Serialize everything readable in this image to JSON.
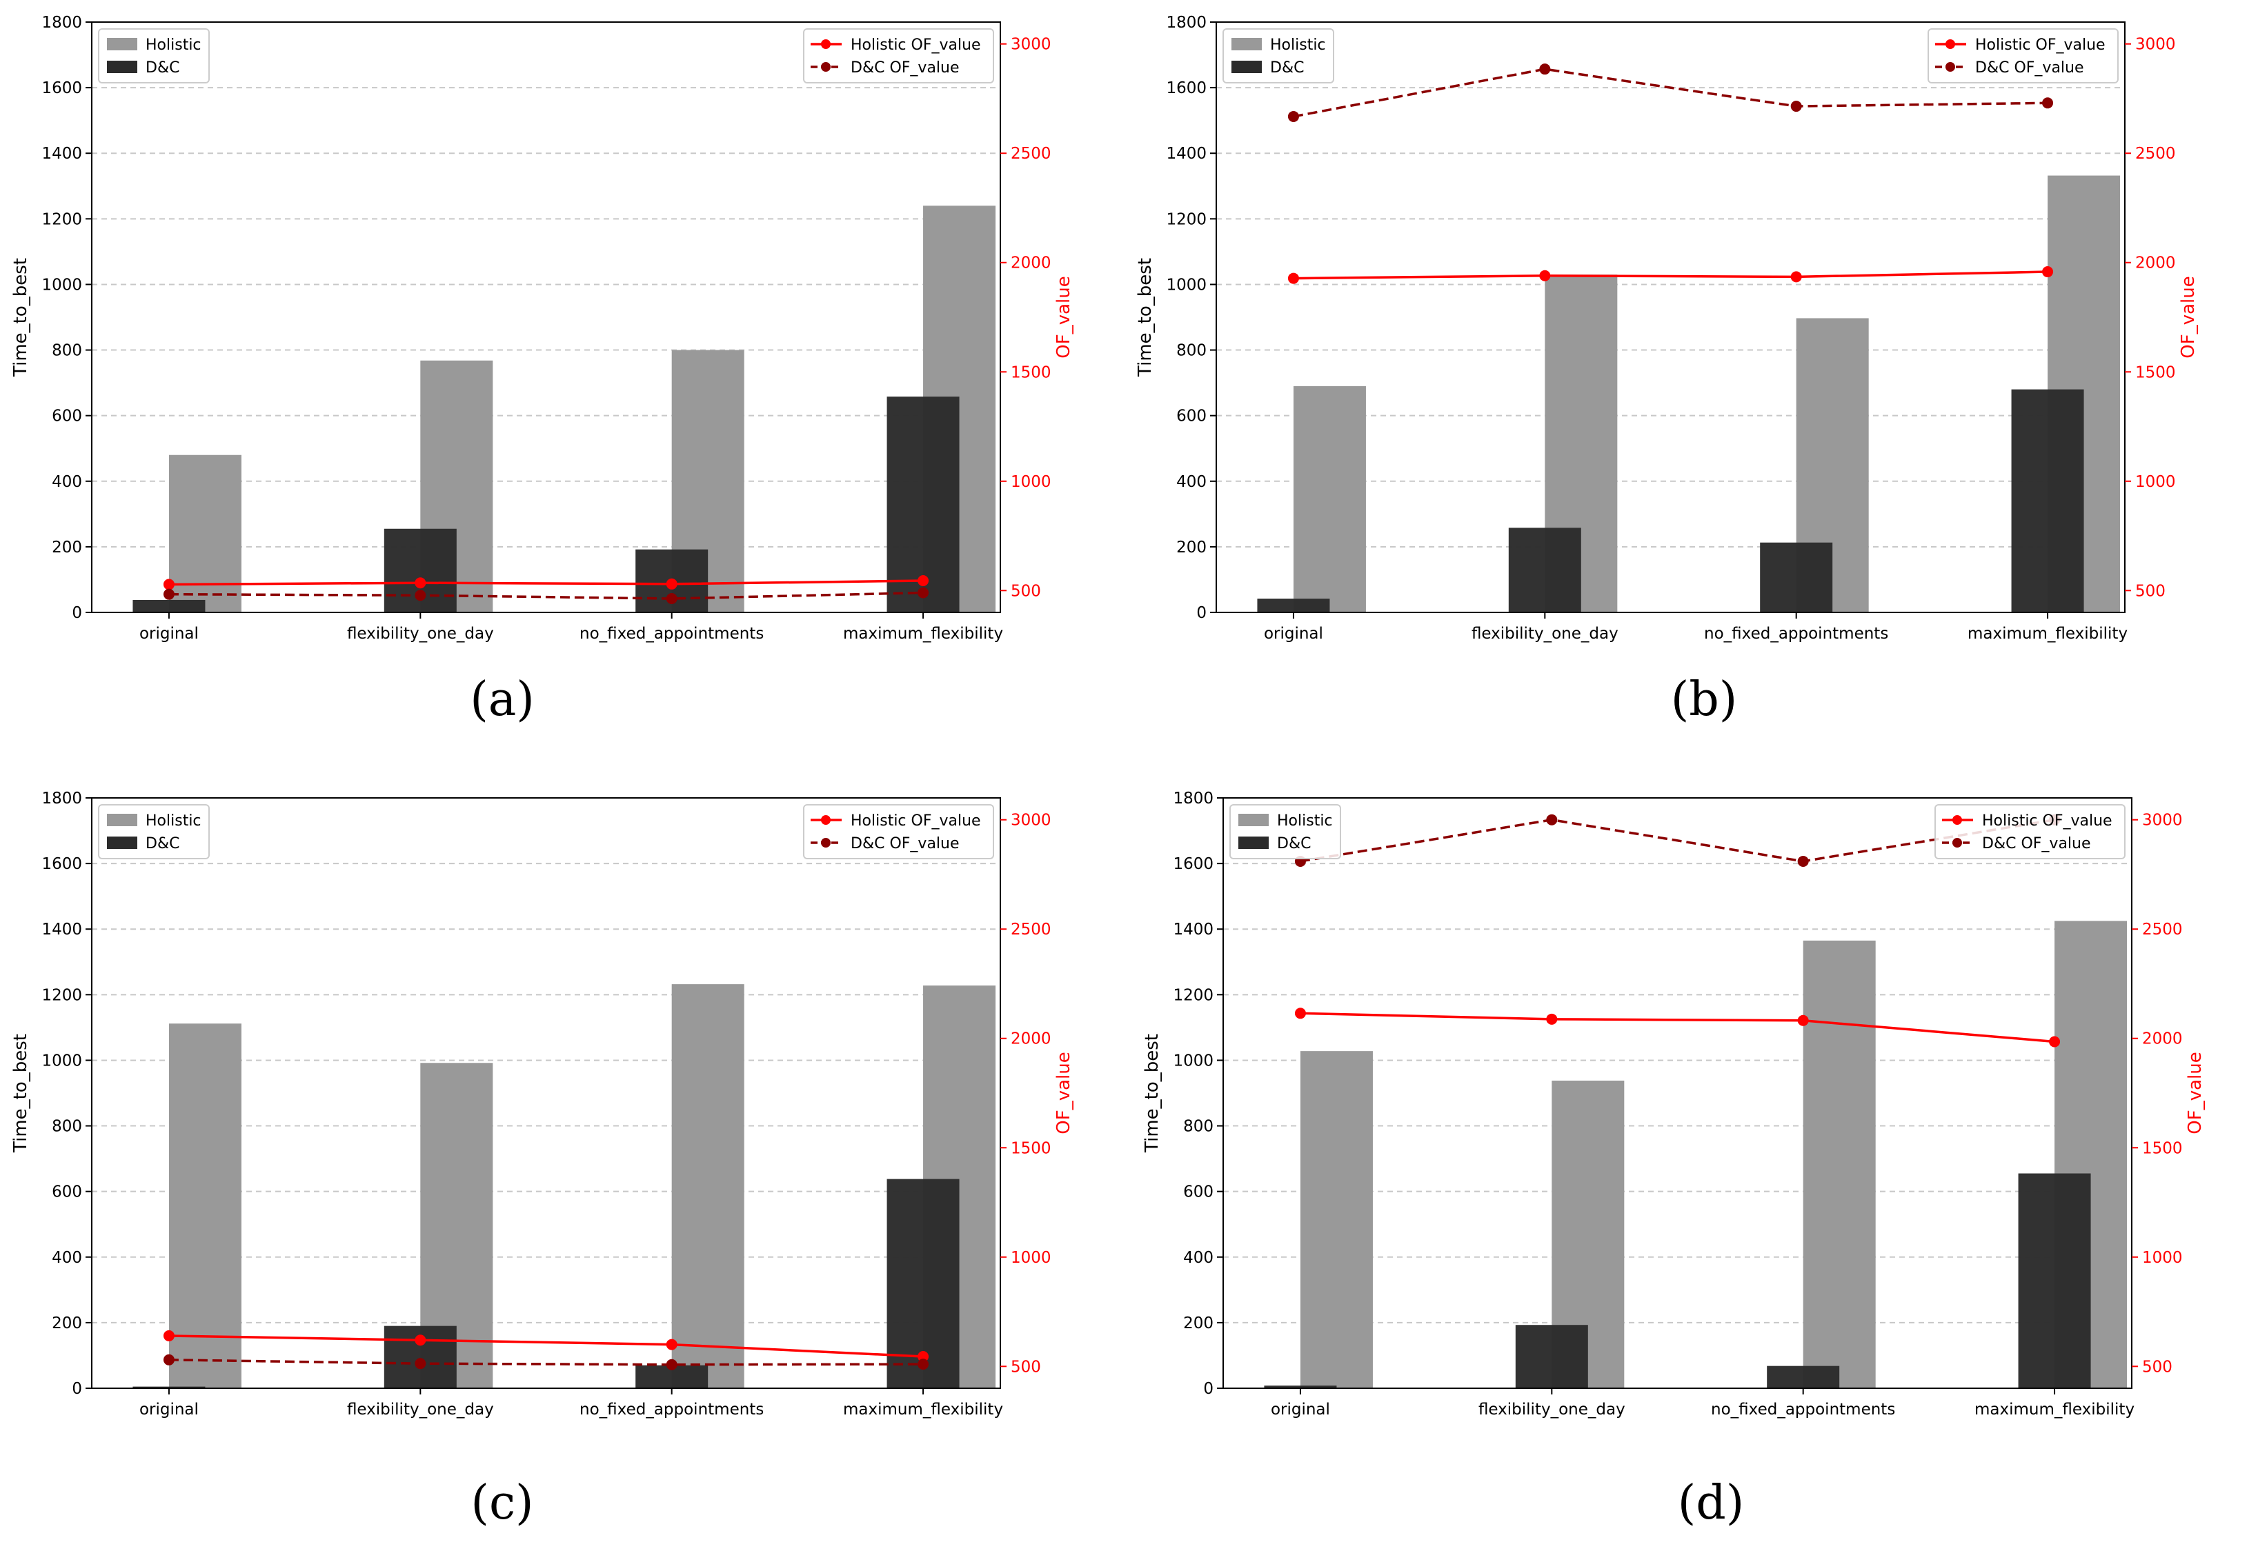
{
  "shared": {
    "categories": [
      "original",
      "flexibility_one_day",
      "no_fixed_appointments",
      "maximum_flexibility"
    ],
    "left_axis": {
      "label": "Time_to_best",
      "range": [
        0,
        1800
      ],
      "ticks": [
        0,
        200,
        400,
        600,
        800,
        1000,
        1200,
        1400,
        1600,
        1800
      ]
    },
    "right_axis": {
      "label": "OF_value",
      "range": [
        400,
        3100
      ],
      "ticks": [
        500,
        1000,
        1500,
        2000,
        2500,
        3000
      ]
    },
    "legend_bars": [
      "Holistic",
      "D&C"
    ],
    "legend_lines": [
      "Holistic OF_value",
      "D&C OF_value"
    ],
    "colors": {
      "holistic_bar": "#999999",
      "dc_bar": "#2b2b2b",
      "holistic_line": "#ff0000",
      "dc_line": "#8b0000",
      "grid": "#c8c8c8"
    }
  },
  "chart_data": [
    {
      "panel": "(a)",
      "type": "bar",
      "categories": [
        "original",
        "flexibility_one_day",
        "no_fixed_appointments",
        "maximum_flexibility"
      ],
      "ylabel": "Time_to_best",
      "y2label": "OF_value",
      "ylim": [
        0,
        1800
      ],
      "y2lim": [
        400,
        3100
      ],
      "grid": "horizontal-dashed",
      "series": [
        {
          "name": "Holistic",
          "kind": "bar",
          "values": [
            480,
            768,
            800,
            1240
          ]
        },
        {
          "name": "D&C",
          "kind": "bar",
          "values": [
            38,
            255,
            192,
            658
          ]
        },
        {
          "name": "Holistic OF_value",
          "kind": "line",
          "axis": "right",
          "values": [
            528,
            535,
            530,
            545
          ]
        },
        {
          "name": "D&C OF_value",
          "kind": "line-dashed",
          "axis": "right",
          "values": [
            483,
            478,
            463,
            490
          ]
        }
      ]
    },
    {
      "panel": "(b)",
      "type": "bar",
      "categories": [
        "original",
        "flexibility_one_day",
        "no_fixed_appointments",
        "maximum_flexibility"
      ],
      "ylabel": "Time_to_best",
      "y2label": "OF_value",
      "ylim": [
        0,
        1800
      ],
      "y2lim": [
        400,
        3100
      ],
      "grid": "horizontal-dashed",
      "series": [
        {
          "name": "Holistic",
          "kind": "bar",
          "values": [
            690,
            1030,
            897,
            1332
          ]
        },
        {
          "name": "D&C",
          "kind": "bar",
          "values": [
            42,
            258,
            213,
            680
          ]
        },
        {
          "name": "Holistic OF_value",
          "kind": "line",
          "axis": "right",
          "values": [
            1928,
            1940,
            1935,
            1958
          ]
        },
        {
          "name": "D&C OF_value",
          "kind": "line-dashed",
          "axis": "right",
          "values": [
            2668,
            2885,
            2715,
            2730
          ]
        }
      ]
    },
    {
      "panel": "(c)",
      "type": "bar",
      "categories": [
        "original",
        "flexibility_one_day",
        "no_fixed_appointments",
        "maximum_flexibility"
      ],
      "ylabel": "Time_to_best",
      "y2label": "OF_value",
      "ylim": [
        0,
        1800
      ],
      "y2lim": [
        400,
        3100
      ],
      "grid": "horizontal-dashed",
      "series": [
        {
          "name": "Holistic",
          "kind": "bar",
          "values": [
            1112,
            992,
            1232,
            1228
          ]
        },
        {
          "name": "D&C",
          "kind": "bar",
          "values": [
            5,
            190,
            70,
            638
          ]
        },
        {
          "name": "Holistic OF_value",
          "kind": "line",
          "axis": "right",
          "values": [
            640,
            620,
            600,
            545
          ]
        },
        {
          "name": "D&C OF_value",
          "kind": "line-dashed",
          "axis": "right",
          "values": [
            530,
            513,
            508,
            510
          ]
        }
      ]
    },
    {
      "panel": "(d)",
      "type": "bar",
      "categories": [
        "original",
        "flexibility_one_day",
        "no_fixed_appointments",
        "maximum_flexibility"
      ],
      "ylabel": "Time_to_best",
      "y2label": "OF_value",
      "ylim": [
        0,
        1800
      ],
      "y2lim": [
        400,
        3100
      ],
      "grid": "horizontal-dashed",
      "series": [
        {
          "name": "Holistic",
          "kind": "bar",
          "values": [
            1028,
            938,
            1365,
            1425
          ]
        },
        {
          "name": "D&C",
          "kind": "bar",
          "values": [
            8,
            193,
            68,
            655
          ]
        },
        {
          "name": "Holistic OF_value",
          "kind": "line",
          "axis": "right",
          "values": [
            2115,
            2088,
            2082,
            1985
          ]
        },
        {
          "name": "D&C OF_value",
          "kind": "line-dashed",
          "axis": "right",
          "values": [
            2810,
            3000,
            2810,
            3000
          ]
        }
      ]
    }
  ]
}
